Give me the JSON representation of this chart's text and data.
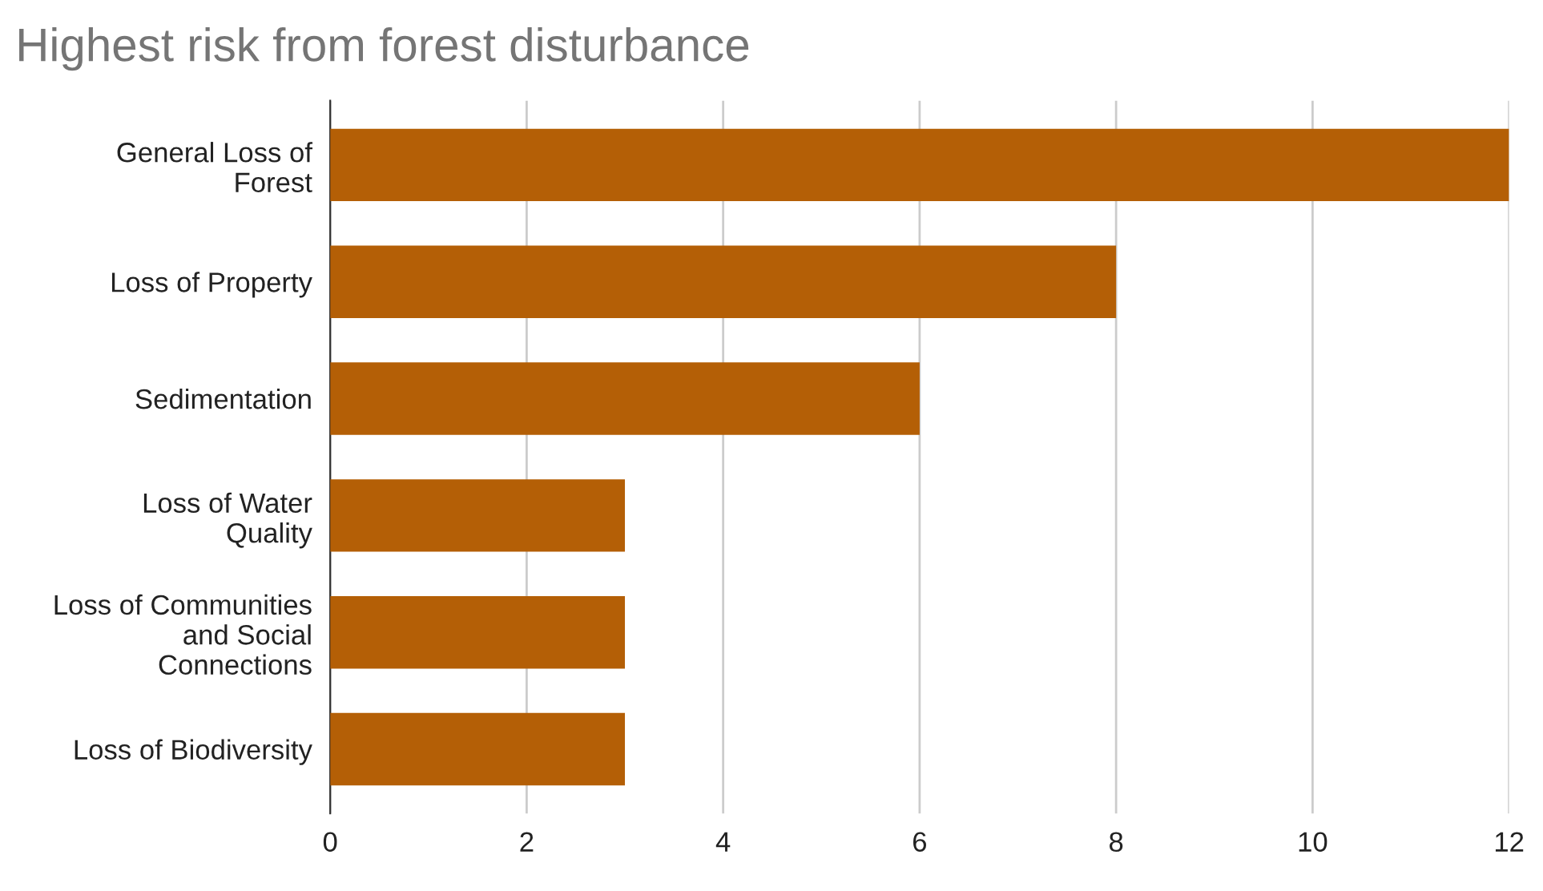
{
  "chart_data": {
    "type": "bar",
    "orientation": "horizontal",
    "title": "Highest risk from forest disturbance",
    "categories": [
      "General Loss of\nForest",
      "Loss of Property",
      "Sedimentation",
      "Loss of Water\nQuality",
      "Loss of Communities\nand Social\nConnections",
      "Loss of Biodiversity"
    ],
    "values": [
      12,
      8,
      6,
      3,
      3,
      3
    ],
    "color": "#b45f06",
    "xlim": [
      0,
      12
    ],
    "xticks": [
      0,
      2,
      4,
      6,
      8,
      10,
      12
    ],
    "grid": "x",
    "legend": false
  }
}
